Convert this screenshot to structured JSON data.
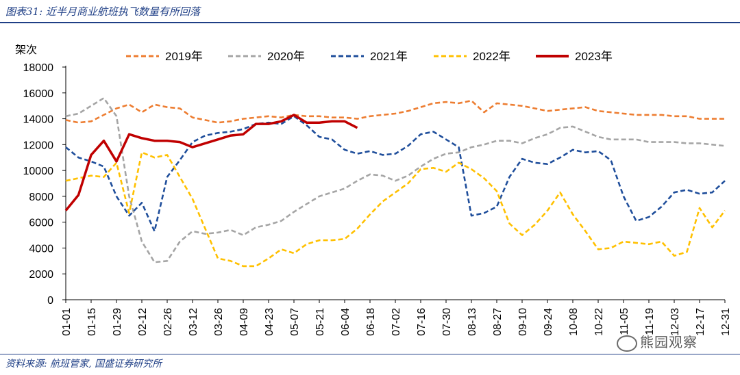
{
  "header": {
    "title": "图表31: 近半月商业航班执飞数量有所回落"
  },
  "footer": {
    "source": "资料来源: 航班管家, 国盛证券研究所",
    "watermark": "熊园观察"
  },
  "chart_data": {
    "type": "line",
    "ylabel": "架次",
    "ylim": [
      0,
      18000
    ],
    "yticks": [
      0,
      2000,
      4000,
      6000,
      8000,
      10000,
      12000,
      14000,
      16000,
      18000
    ],
    "xticks": [
      "01-01",
      "01-15",
      "01-29",
      "02-12",
      "02-26",
      "03-12",
      "03-26",
      "04-09",
      "04-23",
      "05-07",
      "05-21",
      "06-04",
      "06-18",
      "07-02",
      "07-16",
      "07-30",
      "08-13",
      "08-27",
      "09-10",
      "09-24",
      "10-08",
      "10-22",
      "11-05",
      "11-19",
      "12-03",
      "12-17",
      "12-31"
    ],
    "x_points": [
      "01-01",
      "01-08",
      "01-15",
      "01-22",
      "01-29",
      "02-05",
      "02-12",
      "02-19",
      "02-26",
      "03-05",
      "03-12",
      "03-19",
      "03-26",
      "04-02",
      "04-09",
      "04-16",
      "04-23",
      "04-30",
      "05-07",
      "05-14",
      "05-21",
      "05-28",
      "06-04",
      "06-11",
      "06-18",
      "06-25",
      "07-02",
      "07-09",
      "07-16",
      "07-23",
      "07-30",
      "08-06",
      "08-13",
      "08-20",
      "08-27",
      "09-03",
      "09-10",
      "09-17",
      "09-24",
      "10-01",
      "10-08",
      "10-15",
      "10-22",
      "10-29",
      "11-05",
      "11-12",
      "11-19",
      "11-26",
      "12-03",
      "12-10",
      "12-17",
      "12-24",
      "12-31"
    ],
    "legend_position": "top",
    "series": [
      {
        "name": "2019年",
        "color": "#ed7d31",
        "dash": "dashed",
        "values": [
          13900,
          13700,
          13800,
          14300,
          14800,
          15100,
          14500,
          15100,
          14900,
          14800,
          14100,
          13900,
          13700,
          13800,
          14000,
          14100,
          14200,
          14100,
          14300,
          14200,
          14200,
          14100,
          14100,
          14000,
          14200,
          14300,
          14400,
          14600,
          14900,
          15200,
          15300,
          15200,
          15400,
          14500,
          15200,
          15100,
          15000,
          14800,
          14600,
          14700,
          14800,
          14900,
          14600,
          14500,
          14400,
          14300,
          14300,
          14300,
          14200,
          14200,
          14000,
          14000,
          14000
        ]
      },
      {
        "name": "2020年",
        "color": "#a5a5a5",
        "dash": "dashed",
        "values": [
          14200,
          14400,
          15000,
          15600,
          14200,
          8000,
          4500,
          2900,
          3000,
          4500,
          5300,
          5100,
          5200,
          5400,
          5000,
          5600,
          5800,
          6100,
          6800,
          7400,
          8000,
          8300,
          8600,
          9200,
          9700,
          9600,
          9200,
          9600,
          10300,
          10900,
          11300,
          11400,
          11800,
          12000,
          12300,
          12300,
          12100,
          12500,
          12800,
          13300,
          13400,
          13000,
          12600,
          12400,
          12400,
          12400,
          12200,
          12200,
          12200,
          12100,
          12100,
          12000,
          11900
        ]
      },
      {
        "name": "2021年",
        "color": "#1f4e9b",
        "dash": "dashed",
        "values": [
          11800,
          11000,
          10700,
          10300,
          8000,
          6500,
          7500,
          5300,
          9500,
          10800,
          12200,
          12700,
          12900,
          13000,
          13200,
          13600,
          13700,
          13600,
          14200,
          13500,
          12600,
          12400,
          11600,
          11300,
          11500,
          11200,
          11300,
          11900,
          12800,
          13000,
          12400,
          11800,
          6500,
          6700,
          7200,
          9500,
          10900,
          10600,
          10500,
          11000,
          11600,
          11400,
          11500,
          10800,
          8000,
          6100,
          6400,
          7200,
          8300,
          8500,
          8200,
          8300,
          9200
        ]
      },
      {
        "name": "2022年",
        "color": "#ffc000",
        "dash": "dashed",
        "values": [
          9200,
          9400,
          9600,
          9500,
          10600,
          6700,
          11400,
          11000,
          11200,
          9500,
          7800,
          5500,
          3200,
          3000,
          2600,
          2600,
          3200,
          3900,
          3600,
          4300,
          4600,
          4600,
          4700,
          5500,
          6600,
          7600,
          8300,
          9000,
          10100,
          10200,
          9900,
          10600,
          10100,
          9400,
          8400,
          5900,
          5000,
          5800,
          6900,
          8300,
          6600,
          5300,
          3900,
          4000,
          4500,
          4400,
          4300,
          4500,
          3400,
          3700,
          7100,
          5600,
          6900
        ]
      },
      {
        "name": "2023年",
        "color": "#c00000",
        "dash": "solid",
        "values": [
          6900,
          8100,
          11200,
          12300,
          10700,
          12800,
          12500,
          12300,
          12300,
          12200,
          11800,
          12100,
          12400,
          12700,
          12800,
          13600,
          13600,
          13800,
          14300,
          13700,
          13700,
          13800,
          13800,
          13300
        ]
      }
    ]
  }
}
